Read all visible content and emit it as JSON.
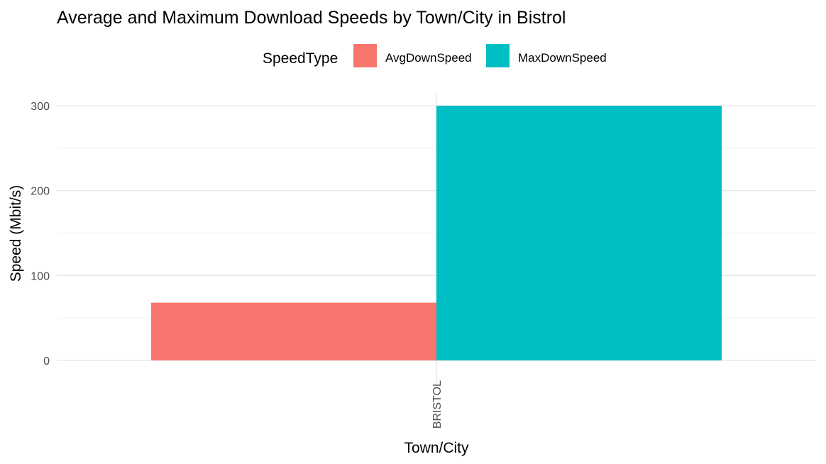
{
  "chart_data": {
    "type": "bar",
    "title": "Average and Maximum Download Speeds by Town/City in Bistrol",
    "xlabel": "Town/City",
    "ylabel": "Speed (Mbit/s)",
    "categories": [
      "BRISTOL"
    ],
    "series": [
      {
        "name": "AvgDownSpeed",
        "values": [
          68
        ],
        "color": "#F8766D"
      },
      {
        "name": "MaxDownSpeed",
        "values": [
          300
        ],
        "color": "#00BFC4"
      }
    ],
    "legend": {
      "title": "SpeedType",
      "position": "top"
    },
    "ylim": [
      0,
      315
    ],
    "yticks": [
      0,
      100,
      200,
      300
    ],
    "grid": true
  }
}
